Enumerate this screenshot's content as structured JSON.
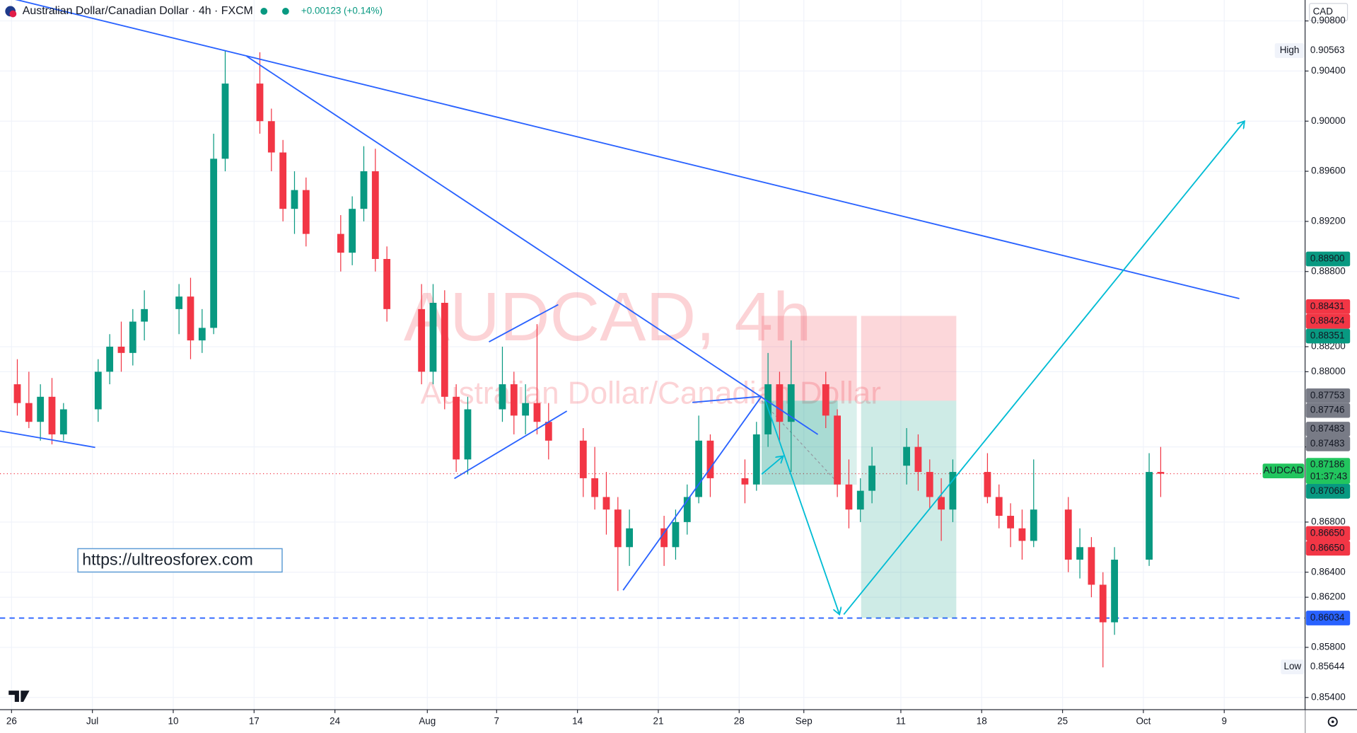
{
  "chart_data": {
    "type": "candlestick",
    "title": "Australian Dollar/Canadian Dollar · 4h · FXCM",
    "subtitle": "+0.00123 (+0.14%)",
    "watermark": "AUDCAD, 4h",
    "watermark_sub": "Australian Dollar/Canadian Dollar",
    "currency": "CAD",
    "link": "https://ultreosforex.com",
    "up_color": "#089981",
    "down_color": "#f23645",
    "grid": true,
    "xlim": [
      -1,
      112
    ],
    "xticks": [
      {
        "value": 0,
        "label": "26"
      },
      {
        "value": 7,
        "label": "Jul"
      },
      {
        "value": 14,
        "label": "10"
      },
      {
        "value": 21,
        "label": "17"
      },
      {
        "value": 28,
        "label": "24"
      },
      {
        "value": 36,
        "label": "Aug"
      },
      {
        "value": 42,
        "label": "7"
      },
      {
        "value": 49,
        "label": "14"
      },
      {
        "value": 56,
        "label": "21"
      },
      {
        "value": 63,
        "label": "28"
      },
      {
        "value": 68.6,
        "label": "Sep"
      },
      {
        "value": 77,
        "label": "11"
      },
      {
        "value": 84,
        "label": "18"
      },
      {
        "value": 91,
        "label": "25"
      },
      {
        "value": 98,
        "label": "Oct"
      },
      {
        "value": 105,
        "label": "9"
      }
    ],
    "ylim": [
      0.85303,
      0.90967
    ],
    "yticks": [
      {
        "value": 0.908,
        "label": "0.90800"
      },
      {
        "value": 0.904,
        "label": "0.90400"
      },
      {
        "value": 0.9,
        "label": "0.90000"
      },
      {
        "value": 0.896,
        "label": "0.89600"
      },
      {
        "value": 0.892,
        "label": "0.89200"
      },
      {
        "value": 0.888,
        "label": "0.88800"
      },
      {
        "value": 0.882,
        "label": "0.88200"
      },
      {
        "value": 0.88,
        "label": "0.88000"
      },
      {
        "value": 0.874,
        "label": "0.87400"
      },
      {
        "value": 0.868,
        "label": "0.86800"
      },
      {
        "value": 0.864,
        "label": "0.86400"
      },
      {
        "value": 0.862,
        "label": "0.86200"
      },
      {
        "value": 0.858,
        "label": "0.85800"
      },
      {
        "value": 0.854,
        "label": "0.85400"
      }
    ],
    "candles": {
      "x": [
        0,
        1,
        2,
        3,
        4,
        7,
        8,
        9,
        10,
        11,
        14,
        15,
        16,
        17,
        18,
        21,
        22,
        23,
        24,
        25,
        28,
        29,
        30,
        31,
        32,
        35,
        36,
        37,
        38,
        39,
        42,
        43,
        44,
        45,
        46,
        49,
        50,
        51,
        52,
        53,
        56,
        57,
        58,
        59,
        60,
        63,
        64,
        65,
        66,
        67,
        70,
        71,
        72,
        73,
        74,
        77,
        78,
        79,
        80,
        81,
        84,
        85,
        86,
        87,
        88,
        91,
        92,
        93,
        94,
        95,
        98,
        99
      ],
      "open": [
        0.879,
        0.8775,
        0.876,
        0.878,
        0.875,
        0.877,
        0.88,
        0.882,
        0.8815,
        0.884,
        0.885,
        0.886,
        0.8825,
        0.8835,
        0.897,
        0.903,
        0.9,
        0.8975,
        0.893,
        0.8945,
        0.891,
        0.8895,
        0.893,
        0.896,
        0.889,
        0.885,
        0.88,
        0.8855,
        0.878,
        0.873,
        0.877,
        0.879,
        0.8765,
        0.8775,
        0.876,
        0.8745,
        0.8715,
        0.87,
        0.869,
        0.866,
        0.8675,
        0.866,
        0.868,
        0.87,
        0.8745,
        0.8715,
        0.871,
        0.875,
        0.879,
        0.876,
        0.879,
        0.8765,
        0.871,
        0.869,
        0.8705,
        0.8725,
        0.874,
        0.872,
        0.87,
        0.869,
        0.872,
        0.87,
        0.8685,
        0.8675,
        0.8665,
        0.869,
        0.865,
        0.866,
        0.863,
        0.86,
        0.865,
        0.872
      ],
      "high": [
        0.881,
        0.88,
        0.879,
        0.8795,
        0.8775,
        0.881,
        0.883,
        0.884,
        0.885,
        0.8865,
        0.887,
        0.8875,
        0.885,
        0.899,
        0.9056,
        0.9055,
        0.901,
        0.8985,
        0.896,
        0.8955,
        0.8925,
        0.894,
        0.898,
        0.8978,
        0.89,
        0.887,
        0.887,
        0.8865,
        0.879,
        0.878,
        0.882,
        0.88,
        0.879,
        0.8838,
        0.8775,
        0.8755,
        0.874,
        0.872,
        0.87,
        0.869,
        0.8685,
        0.869,
        0.871,
        0.8765,
        0.875,
        0.873,
        0.876,
        0.8815,
        0.88,
        0.8825,
        0.88,
        0.877,
        0.873,
        0.8715,
        0.874,
        0.8755,
        0.875,
        0.873,
        0.8715,
        0.873,
        0.8735,
        0.871,
        0.8695,
        0.869,
        0.873,
        0.87,
        0.8675,
        0.8668,
        0.864,
        0.866,
        0.8735,
        0.874
      ],
      "low": [
        0.8765,
        0.8755,
        0.8745,
        0.8742,
        0.8745,
        0.876,
        0.879,
        0.88,
        0.8805,
        0.8825,
        0.883,
        0.881,
        0.8815,
        0.883,
        0.896,
        0.899,
        0.896,
        0.892,
        0.891,
        0.89,
        0.888,
        0.8885,
        0.892,
        0.888,
        0.884,
        0.879,
        0.879,
        0.877,
        0.872,
        0.8718,
        0.876,
        0.875,
        0.875,
        0.875,
        0.873,
        0.87,
        0.869,
        0.867,
        0.8625,
        0.8645,
        0.8645,
        0.865,
        0.867,
        0.8695,
        0.87,
        0.8695,
        0.8705,
        0.874,
        0.8745,
        0.872,
        0.8755,
        0.87,
        0.8675,
        0.868,
        0.8695,
        0.871,
        0.8705,
        0.869,
        0.8665,
        0.868,
        0.8695,
        0.8675,
        0.866,
        0.865,
        0.866,
        0.864,
        0.8635,
        0.862,
        0.8564,
        0.859,
        0.8645,
        0.87
      ],
      "close": [
        0.8775,
        0.876,
        0.878,
        0.875,
        0.877,
        0.88,
        0.882,
        0.8815,
        0.884,
        0.885,
        0.886,
        0.8825,
        0.8835,
        0.897,
        0.903,
        0.9,
        0.8975,
        0.893,
        0.8945,
        0.891,
        0.8895,
        0.893,
        0.896,
        0.889,
        0.885,
        0.88,
        0.8855,
        0.878,
        0.873,
        0.877,
        0.879,
        0.8765,
        0.8775,
        0.876,
        0.8745,
        0.8715,
        0.87,
        0.869,
        0.866,
        0.8675,
        0.866,
        0.868,
        0.87,
        0.8745,
        0.8715,
        0.871,
        0.875,
        0.879,
        0.876,
        0.879,
        0.8765,
        0.871,
        0.869,
        0.8705,
        0.8725,
        0.874,
        0.872,
        0.87,
        0.869,
        0.872,
        0.87,
        0.8685,
        0.8675,
        0.8665,
        0.869,
        0.865,
        0.866,
        0.863,
        0.86,
        0.865,
        0.872,
        0.87186
      ]
    },
    "price_labels": [
      {
        "tag": "High",
        "value": 0.90563,
        "label": "0.90563",
        "color": "#ffffff"
      },
      {
        "value": 0.889,
        "label": "0.88900",
        "color": "#089981"
      },
      {
        "value": 0.88431,
        "label": "0.88431",
        "color": "#f23645"
      },
      {
        "value": 0.88424,
        "label": "0.88424",
        "color": "#f23645"
      },
      {
        "value": 0.88351,
        "label": "0.88351",
        "color": "#089981"
      },
      {
        "value": 0.87753,
        "label": "0.87753",
        "color": "#787b86"
      },
      {
        "value": 0.87746,
        "label": "0.87746",
        "color": "#787b86"
      },
      {
        "value": 0.87483,
        "label": "0.87483",
        "color": "#787b86"
      },
      {
        "value": 0.87483,
        "label": "0.87483",
        "color": "#787b86"
      },
      {
        "tag": "AUDCAD",
        "value": 0.87186,
        "label": "0.87186",
        "countdown": "01:37:43",
        "color": "#22c55e",
        "line": "dotted"
      },
      {
        "value": 0.87068,
        "label": "0.87068",
        "color": "#089981"
      },
      {
        "value": 0.8665,
        "label": "0.86650",
        "color": "#f23645"
      },
      {
        "value": 0.8665,
        "label": "0.86650",
        "color": "#f23645"
      },
      {
        "value": 0.86034,
        "label": "0.86034",
        "color": "#2962ff",
        "line": "dashed"
      },
      {
        "tag": "Low",
        "value": 0.85644,
        "label": "0.85644",
        "color": "#ffffff"
      }
    ]
  }
}
